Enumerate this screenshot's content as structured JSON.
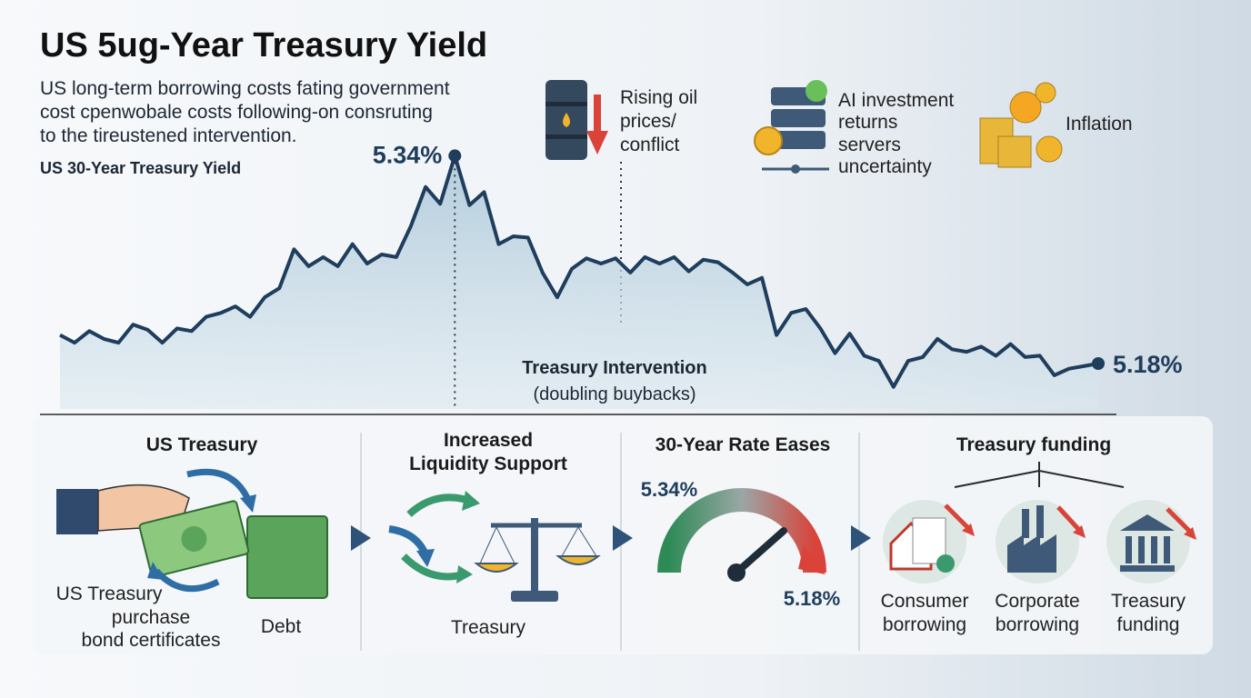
{
  "chart_data": {
    "type": "line",
    "title": "US 5ug-Year Treasury Yield",
    "subtitle": [
      "US long-term borrowing costs fating government",
      "cost cpenwobale costs following-on consruting",
      "to the tireustened intervention."
    ],
    "series": [
      {
        "name": "US 30-Year Treasury Yield",
        "color": "#1f3d5c",
        "values": [
          5.202,
          5.196,
          5.205,
          5.199,
          5.196,
          5.21,
          5.206,
          5.196,
          5.207,
          5.205,
          5.216,
          5.219,
          5.224,
          5.216,
          5.231,
          5.238,
          5.268,
          5.255,
          5.262,
          5.255,
          5.272,
          5.257,
          5.264,
          5.262,
          5.286,
          5.316,
          5.303,
          5.34,
          5.302,
          5.312,
          5.272,
          5.278,
          5.277,
          5.25,
          5.231,
          5.253,
          5.261,
          5.257,
          5.261,
          5.25,
          5.262,
          5.257,
          5.262,
          5.251,
          5.26,
          5.258,
          5.25,
          5.241,
          5.246,
          5.202,
          5.219,
          5.222,
          5.207,
          5.188,
          5.203,
          5.186,
          5.182,
          5.162,
          5.182,
          5.185,
          5.199,
          5.191,
          5.189,
          5.193,
          5.186,
          5.195,
          5.185,
          5.186,
          5.171,
          5.176,
          5.178,
          5.18
        ],
        "value_labels": [
          null,
          null,
          null,
          null,
          null,
          null,
          null,
          null,
          null,
          null,
          null,
          null,
          null,
          null,
          null,
          null,
          null,
          null,
          null,
          null,
          null,
          null,
          null,
          null,
          null,
          null,
          null,
          "5.34%",
          null,
          null,
          null,
          null,
          null,
          null,
          null,
          null,
          null,
          null,
          null,
          null,
          null,
          null,
          null,
          null,
          null,
          null,
          null,
          null,
          null,
          null,
          null,
          null,
          null,
          null,
          null,
          null,
          null,
          null,
          null,
          null,
          null,
          null,
          null,
          null,
          null,
          null,
          null,
          null,
          null,
          null,
          null,
          "5.18%"
        ]
      }
    ],
    "ylim": [
      5.145,
      5.355
    ],
    "annotations": [
      "Treasury Intervention",
      "(doubling buybacks)"
    ]
  },
  "drivers": [
    [
      "Rising oil",
      "prices/",
      "conflict"
    ],
    [
      "AI investment",
      "returns",
      "servers",
      "uncertainty"
    ],
    [
      "Inflation"
    ]
  ],
  "panels": [
    {
      "title": [
        "US Treasury"
      ],
      "labels": [
        "US Treasury",
        "purchase",
        "bond certificates",
        "Debt"
      ]
    },
    {
      "title": [
        "Increased",
        "Liquidity Support"
      ],
      "labels": [
        "Treasury"
      ]
    },
    {
      "title": [
        "30-Year Rate Eases"
      ],
      "labels": [
        "5.34%",
        "5.18%"
      ]
    },
    {
      "title": [
        "Treasury funding"
      ],
      "labels": [
        [
          "Consumer",
          "borrowing"
        ],
        [
          "Corporate",
          "borrowing"
        ],
        [
          "Treasury",
          "funding"
        ]
      ]
    }
  ]
}
